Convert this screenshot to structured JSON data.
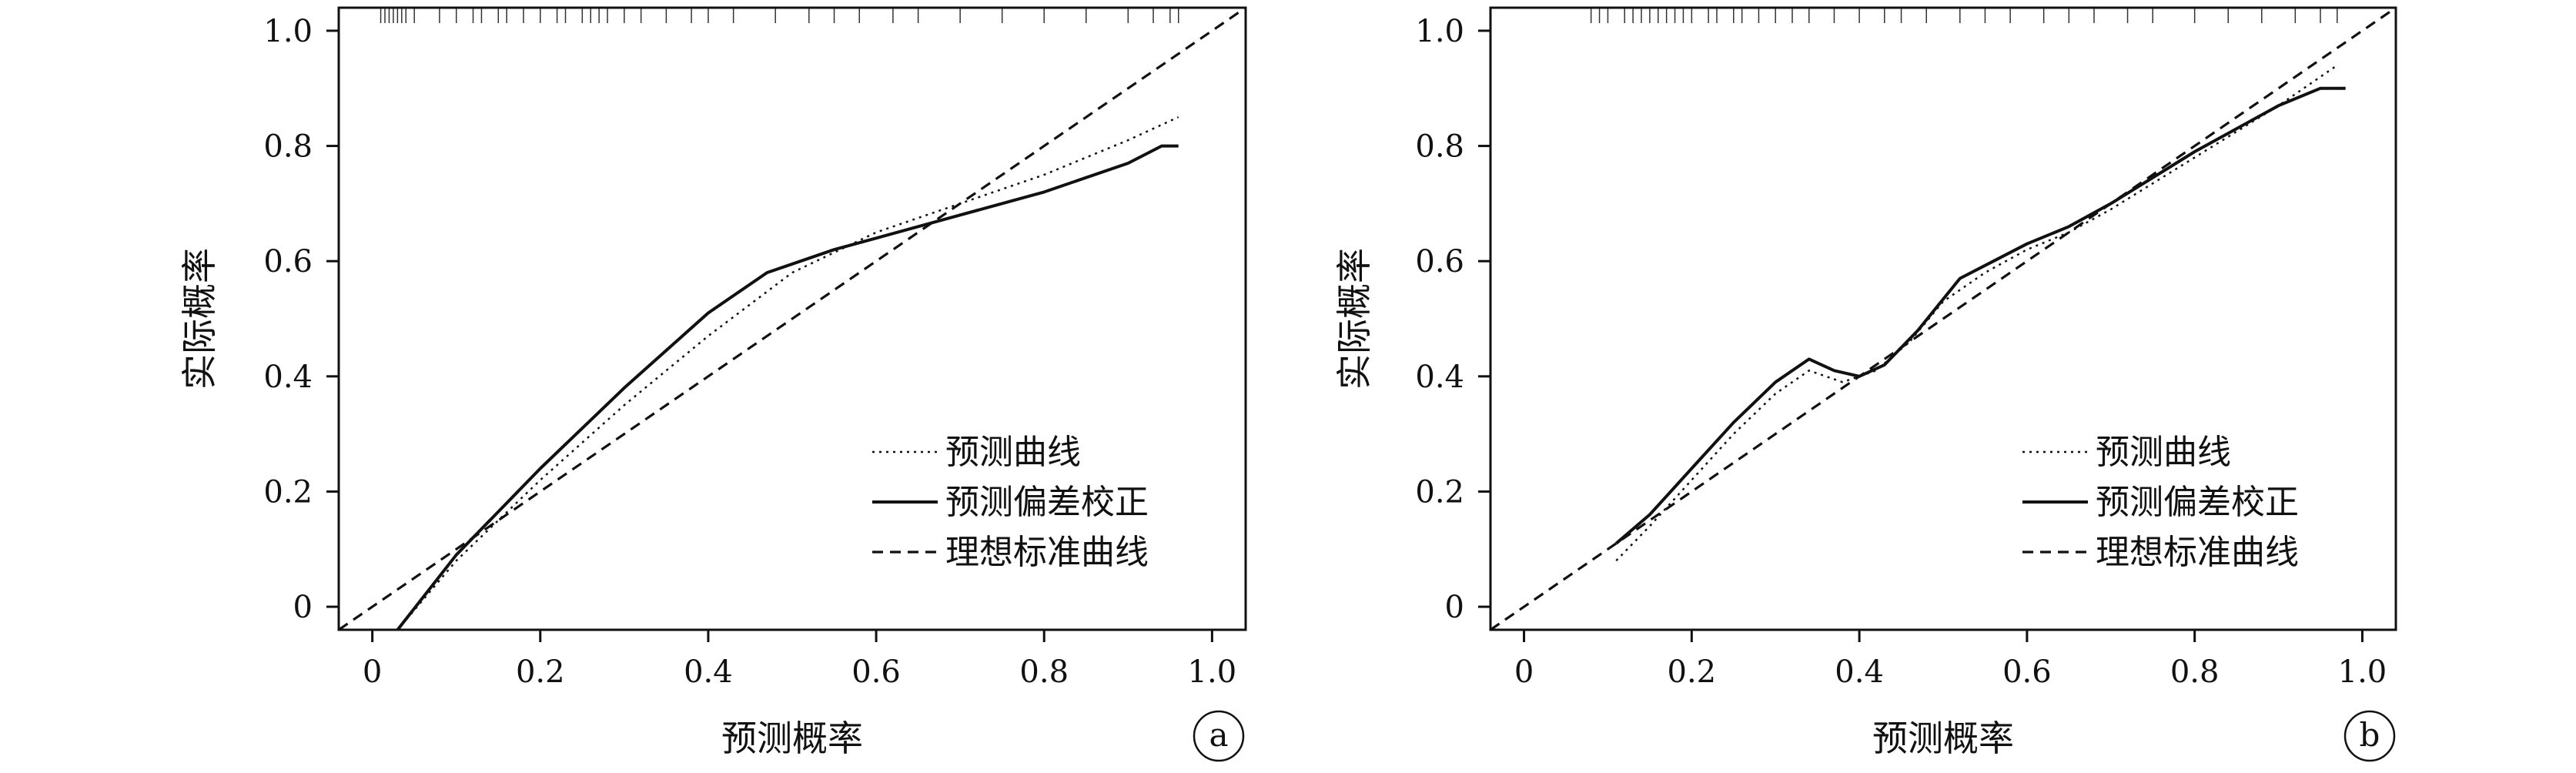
{
  "legend": {
    "predicted": "预测曲线",
    "bias_corrected": "预测偏差校正",
    "ideal": "理想标准曲线"
  },
  "chart_data": [
    {
      "panel": "a",
      "type": "line",
      "xlabel": "预测概率",
      "ylabel": "实际概率",
      "xlim": [
        -0.04,
        1.04
      ],
      "ylim": [
        -0.04,
        1.04
      ],
      "xticks": [
        0,
        0.2,
        0.4,
        0.6,
        0.8,
        1.0
      ],
      "yticks": [
        0,
        0.2,
        0.4,
        0.6,
        0.8,
        1.0
      ],
      "xtick_labels": [
        "0",
        "0.2",
        "0.4",
        "0.6",
        "0.8",
        "1.0"
      ],
      "ytick_labels": [
        "0",
        "0.2",
        "0.4",
        "0.6",
        "0.8",
        "1.0"
      ],
      "legend_position": "bottom-right",
      "series": [
        {
          "name": "预测曲线",
          "style": "dotted",
          "x": [
            0.03,
            0.1,
            0.2,
            0.3,
            0.4,
            0.5,
            0.6,
            0.7,
            0.8,
            0.9,
            0.96
          ],
          "y": [
            -0.04,
            0.08,
            0.22,
            0.35,
            0.47,
            0.58,
            0.65,
            0.7,
            0.75,
            0.81,
            0.85
          ]
        },
        {
          "name": "预测偏差校正",
          "style": "solid",
          "x": [
            0.03,
            0.1,
            0.2,
            0.3,
            0.4,
            0.47,
            0.55,
            0.6,
            0.7,
            0.8,
            0.9,
            0.94,
            0.96
          ],
          "y": [
            -0.04,
            0.09,
            0.24,
            0.38,
            0.51,
            0.58,
            0.62,
            0.64,
            0.68,
            0.72,
            0.77,
            0.8,
            0.8
          ]
        },
        {
          "name": "理想标准曲线",
          "style": "dashed",
          "x": [
            -0.04,
            1.04
          ],
          "y": [
            -0.04,
            1.04
          ]
        }
      ],
      "rug": [
        0.01,
        0.015,
        0.02,
        0.025,
        0.03,
        0.035,
        0.04,
        0.05,
        0.08,
        0.1,
        0.12,
        0.13,
        0.15,
        0.16,
        0.18,
        0.2,
        0.22,
        0.23,
        0.25,
        0.26,
        0.27,
        0.28,
        0.3,
        0.32,
        0.35,
        0.38,
        0.4,
        0.43,
        0.48,
        0.52,
        0.55,
        0.58,
        0.62,
        0.65,
        0.7,
        0.75,
        0.8,
        0.85,
        0.9,
        0.93,
        0.95,
        0.96
      ]
    },
    {
      "panel": "b",
      "type": "line",
      "xlabel": "预测概率",
      "ylabel": "实际概率",
      "xlim": [
        -0.04,
        1.04
      ],
      "ylim": [
        -0.04,
        1.04
      ],
      "xticks": [
        0,
        0.2,
        0.4,
        0.6,
        0.8,
        1.0
      ],
      "yticks": [
        0,
        0.2,
        0.4,
        0.6,
        0.8,
        1.0
      ],
      "xtick_labels": [
        "0",
        "0.2",
        "0.4",
        "0.6",
        "0.8",
        "1.0"
      ],
      "ytick_labels": [
        "0",
        "0.2",
        "0.4",
        "0.6",
        "0.8",
        "1.0"
      ],
      "legend_position": "bottom-right",
      "series": [
        {
          "name": "预测曲线",
          "style": "dotted",
          "x": [
            0.11,
            0.15,
            0.2,
            0.25,
            0.3,
            0.34,
            0.38,
            0.42,
            0.46,
            0.5,
            0.55,
            0.6,
            0.65,
            0.7,
            0.8,
            0.9,
            0.97
          ],
          "y": [
            0.08,
            0.14,
            0.22,
            0.3,
            0.37,
            0.41,
            0.39,
            0.41,
            0.46,
            0.53,
            0.58,
            0.62,
            0.65,
            0.69,
            0.78,
            0.87,
            0.94
          ]
        },
        {
          "name": "预测偏差校正",
          "style": "solid",
          "x": [
            0.11,
            0.15,
            0.2,
            0.25,
            0.3,
            0.34,
            0.37,
            0.4,
            0.43,
            0.47,
            0.52,
            0.56,
            0.6,
            0.65,
            0.7,
            0.8,
            0.9,
            0.95,
            0.98
          ],
          "y": [
            0.11,
            0.16,
            0.24,
            0.32,
            0.39,
            0.43,
            0.41,
            0.4,
            0.42,
            0.48,
            0.57,
            0.6,
            0.63,
            0.66,
            0.7,
            0.79,
            0.87,
            0.9,
            0.9
          ]
        },
        {
          "name": "理想标准曲线",
          "style": "dashed",
          "x": [
            -0.04,
            1.04
          ],
          "y": [
            -0.04,
            1.04
          ]
        }
      ],
      "rug": [
        0.08,
        0.09,
        0.1,
        0.12,
        0.13,
        0.14,
        0.15,
        0.16,
        0.17,
        0.18,
        0.19,
        0.2,
        0.22,
        0.23,
        0.25,
        0.26,
        0.28,
        0.3,
        0.32,
        0.34,
        0.37,
        0.4,
        0.43,
        0.45,
        0.48,
        0.52,
        0.55,
        0.58,
        0.62,
        0.65,
        0.68,
        0.72,
        0.75,
        0.8,
        0.84,
        0.88,
        0.92,
        0.95,
        0.97
      ]
    }
  ]
}
